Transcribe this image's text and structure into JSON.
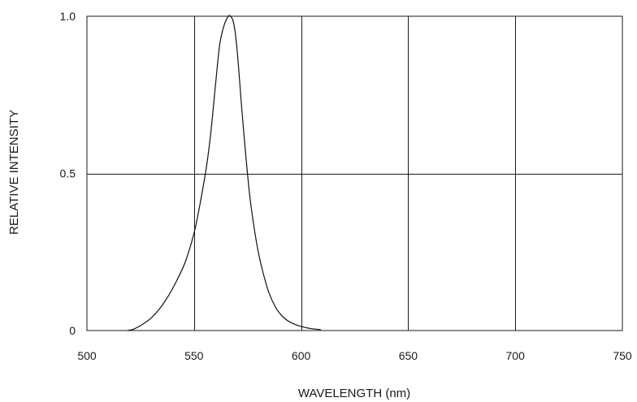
{
  "chart_data": {
    "type": "line",
    "title": "",
    "xlabel": "WAVELENGTH (nm)",
    "ylabel": "RELATIVE INTENSITY",
    "xlim": [
      500,
      750
    ],
    "ylim": [
      0,
      1.0
    ],
    "x_ticks": [
      500,
      550,
      600,
      650,
      700,
      750
    ],
    "x_tick_labels": [
      "500",
      "550",
      "600",
      "650",
      "700",
      "750"
    ],
    "y_ticks": [
      0,
      0.5,
      1.0
    ],
    "y_tick_labels": [
      "0",
      "0.5",
      "1.0"
    ],
    "grid": true,
    "legend": "none",
    "series": [
      {
        "color": "#111111",
        "x": [
          519,
          522,
          526,
          530,
          534,
          538,
          542,
          546,
          550,
          553,
          556,
          558,
          560,
          562,
          564,
          566,
          567,
          568,
          569,
          570,
          571,
          572,
          574,
          576,
          578,
          580,
          582,
          585,
          588,
          591,
          594,
          597,
          600,
          603,
          606,
          609
        ],
        "y": [
          0.0,
          0.005,
          0.02,
          0.04,
          0.07,
          0.11,
          0.16,
          0.22,
          0.31,
          0.41,
          0.53,
          0.64,
          0.78,
          0.91,
          0.97,
          1.0,
          1.0,
          0.99,
          0.96,
          0.9,
          0.82,
          0.73,
          0.57,
          0.43,
          0.33,
          0.25,
          0.19,
          0.12,
          0.075,
          0.047,
          0.03,
          0.02,
          0.013,
          0.008,
          0.005,
          0.003
        ]
      }
    ]
  }
}
